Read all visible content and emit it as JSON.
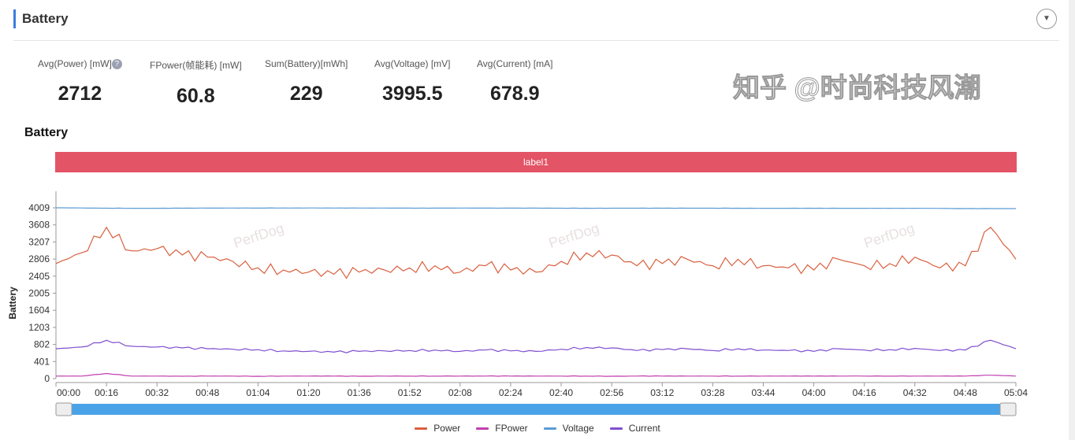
{
  "header": {
    "title": "Battery"
  },
  "stats": [
    {
      "label": "Avg(Power) [mW]",
      "value": "2712",
      "help": "?"
    },
    {
      "label": "FPower(帧能耗) [mW]",
      "value": "60.8"
    },
    {
      "label": "Sum(Battery)[mWh]",
      "value": "229"
    },
    {
      "label": "Avg(Voltage) [mV]",
      "value": "3995.5"
    },
    {
      "label": "Avg(Current) [mA]",
      "value": "678.9"
    }
  ],
  "watermark": "知乎 @时尚科技风潮",
  "chart_data": {
    "type": "line",
    "title": "Battery",
    "label_band": "label1",
    "ylabel": "Battery",
    "ylim": [
      0,
      4009
    ],
    "yticks": [
      "0",
      "401",
      "802",
      "1203",
      "1604",
      "2005",
      "2405",
      "2806",
      "3207",
      "3608",
      "4009"
    ],
    "xlim": [
      0,
      304
    ],
    "xticks": [
      "00:00",
      "00:16",
      "00:32",
      "00:48",
      "01:04",
      "01:20",
      "01:36",
      "01:52",
      "02:08",
      "02:24",
      "02:40",
      "02:56",
      "03:12",
      "03:28",
      "03:44",
      "04:00",
      "04:16",
      "04:32",
      "04:48",
      "05:04"
    ],
    "watermark_text": "PerfDog",
    "x": [
      0,
      8,
      16,
      24,
      32,
      40,
      48,
      56,
      64,
      72,
      80,
      88,
      96,
      104,
      112,
      120,
      128,
      136,
      144,
      152,
      160,
      168,
      176,
      184,
      192,
      200,
      208,
      216,
      224,
      232,
      240,
      248,
      256,
      264,
      272,
      280,
      288,
      296,
      304
    ],
    "series": [
      {
        "name": "Power",
        "color": "#d9603f",
        "values": [
          2700,
          2950,
          3550,
          3000,
          3050,
          2900,
          2850,
          2750,
          2600,
          2550,
          2500,
          2450,
          2500,
          2550,
          2600,
          2650,
          2500,
          2650,
          2550,
          2500,
          2750,
          2950,
          2900,
          2650,
          2700,
          2800,
          2650,
          2800,
          2650,
          2600,
          2550,
          2800,
          2650,
          2700,
          2850,
          2600,
          2650,
          3550,
          2800
        ]
      },
      {
        "name": "FPower",
        "color": "#c040b0",
        "values": [
          60,
          60,
          120,
          60,
          60,
          55,
          60,
          60,
          55,
          60,
          60,
          60,
          55,
          60,
          60,
          60,
          60,
          60,
          60,
          60,
          60,
          60,
          55,
          60,
          60,
          60,
          60,
          60,
          60,
          60,
          60,
          60,
          60,
          60,
          60,
          60,
          60,
          80,
          60
        ]
      },
      {
        "name": "Voltage",
        "color": "#5b9bd5",
        "values": [
          4009,
          4005,
          4000,
          3998,
          3998,
          4000,
          4002,
          4003,
          4004,
          4005,
          4005,
          4004,
          4003,
          4003,
          4002,
          4002,
          4003,
          4002,
          4001,
          4001,
          4000,
          3999,
          3999,
          4000,
          4000,
          4000,
          3999,
          3999,
          3998,
          3998,
          3998,
          3998,
          3997,
          3997,
          3997,
          3995,
          3990,
          3990,
          3990
        ]
      },
      {
        "name": "Current",
        "color": "#7f4fd0",
        "values": [
          700,
          740,
          900,
          760,
          740,
          720,
          700,
          690,
          680,
          650,
          640,
          620,
          640,
          650,
          660,
          670,
          640,
          670,
          650,
          640,
          690,
          730,
          720,
          660,
          680,
          700,
          660,
          700,
          670,
          660,
          640,
          700,
          670,
          680,
          710,
          660,
          670,
          900,
          700
        ]
      }
    ]
  }
}
